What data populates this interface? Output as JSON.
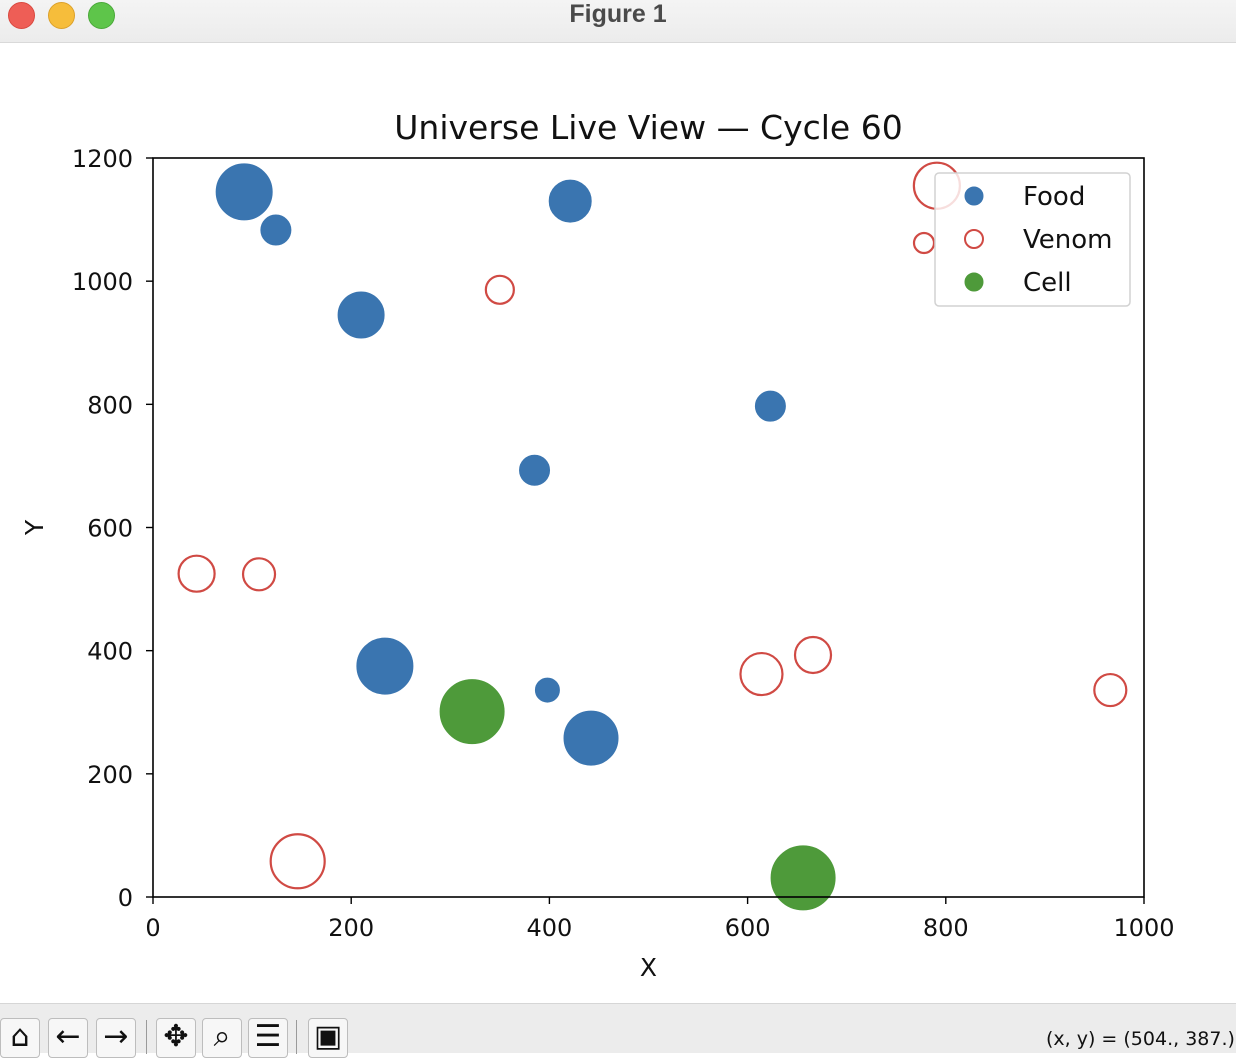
{
  "window": {
    "title": "Figure 1"
  },
  "toolbar": {
    "buttons": [
      {
        "name": "home-button",
        "icon": "home-icon",
        "glyph": "⌂"
      },
      {
        "name": "back-button",
        "icon": "arrow-left-icon",
        "glyph": "←"
      },
      {
        "name": "forward-button",
        "icon": "arrow-right-icon",
        "glyph": "→"
      },
      {
        "name": "pan-button",
        "icon": "move-icon",
        "glyph": "✥"
      },
      {
        "name": "zoom-button",
        "icon": "magnifier-icon",
        "glyph": "⌕"
      },
      {
        "name": "configure-button",
        "icon": "sliders-icon",
        "glyph": "☰"
      },
      {
        "name": "save-button",
        "icon": "floppy-disk-icon",
        "glyph": "▣"
      }
    ],
    "coordinates": "(x, y) = (504., 387.)"
  },
  "chart_data": {
    "type": "scatter",
    "title": "Universe Live View — Cycle 60",
    "xlabel": "X",
    "ylabel": "Y",
    "xlim": [
      0,
      1000
    ],
    "ylim": [
      0,
      1200
    ],
    "xticks": [
      "0",
      "200",
      "400",
      "600",
      "800",
      "1000"
    ],
    "yticks": [
      "0",
      "200",
      "400",
      "600",
      "800",
      "1000",
      "1200"
    ],
    "grid": false,
    "legend_position": "top-right",
    "series": [
      {
        "name": "Food",
        "color": "#3a75b0",
        "marker": "filled-circle",
        "points": [
          {
            "x": 92,
            "y": 1145,
            "size": 28
          },
          {
            "x": 124,
            "y": 1083,
            "size": 15
          },
          {
            "x": 210,
            "y": 945,
            "size": 23
          },
          {
            "x": 421,
            "y": 1130,
            "size": 21
          },
          {
            "x": 623,
            "y": 797,
            "size": 15
          },
          {
            "x": 385,
            "y": 693,
            "size": 15
          },
          {
            "x": 234,
            "y": 375,
            "size": 28
          },
          {
            "x": 398,
            "y": 336,
            "size": 12
          },
          {
            "x": 442,
            "y": 258,
            "size": 27
          }
        ]
      },
      {
        "name": "Venom",
        "color": "#d04a44",
        "marker": "hollow-circle",
        "points": [
          {
            "x": 791,
            "y": 1155,
            "size": 23
          },
          {
            "x": 778,
            "y": 1062,
            "size": 10
          },
          {
            "x": 350,
            "y": 986,
            "size": 14
          },
          {
            "x": 44,
            "y": 525,
            "size": 18
          },
          {
            "x": 107,
            "y": 524,
            "size": 16
          },
          {
            "x": 614,
            "y": 362,
            "size": 21
          },
          {
            "x": 666,
            "y": 393,
            "size": 18
          },
          {
            "x": 966,
            "y": 336,
            "size": 16
          },
          {
            "x": 146,
            "y": 58,
            "size": 27
          }
        ]
      },
      {
        "name": "Cell",
        "color": "#4e9a3a",
        "marker": "filled-circle",
        "points": [
          {
            "x": 322,
            "y": 301,
            "size": 32
          },
          {
            "x": 656,
            "y": 31,
            "size": 32
          }
        ]
      }
    ]
  }
}
